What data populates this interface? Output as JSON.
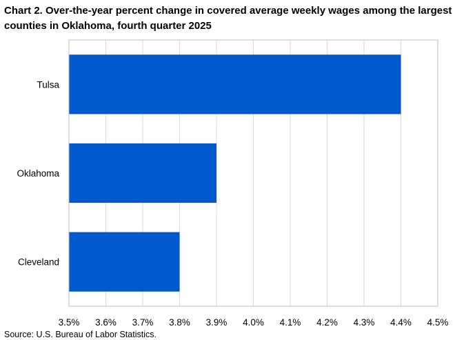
{
  "title": "Chart 2. Over-the-year percent change in covered average weekly wages among the largest counties in Oklahoma, fourth quarter 2025",
  "source": "Source: U.S. Bureau of Labor Statistics.",
  "chart_data": {
    "type": "bar",
    "orientation": "horizontal",
    "categories": [
      "Tulsa",
      "Oklahoma",
      "Cleveland"
    ],
    "values": [
      4.4,
      3.9,
      3.8
    ],
    "xlim": [
      3.5,
      4.5
    ],
    "xticks": [
      3.5,
      3.6,
      3.7,
      3.8,
      3.9,
      4.0,
      4.1,
      4.2,
      4.3,
      4.4,
      4.5
    ],
    "xtick_labels": [
      "3.5%",
      "3.6%",
      "3.7%",
      "3.8%",
      "3.9%",
      "4.0%",
      "4.1%",
      "4.2%",
      "4.3%",
      "4.4%",
      "4.5%"
    ],
    "grid": "vertical",
    "bar_color": "#0059cc",
    "grid_color": "#d9d9d9"
  }
}
